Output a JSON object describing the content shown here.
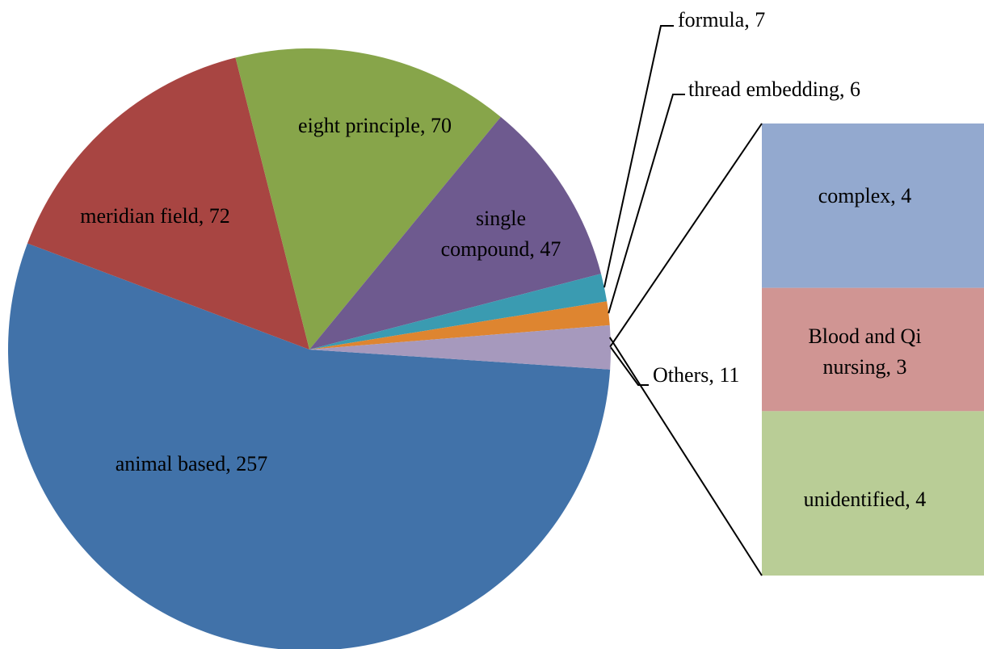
{
  "chart_data": [
    {
      "type": "pie",
      "values": [
        257,
        72,
        70,
        47,
        7,
        6,
        11
      ],
      "value_labels": [
        "animal based, 257",
        "meridian field, 72",
        "eight principle, 70",
        "single compound, 47",
        "formula, 7",
        "thread embedding, 6",
        "Others, 11"
      ],
      "colors": [
        "#4172a9",
        "#a84542",
        "#87a54a",
        "#6e5a8f",
        "#3a9bb1",
        "#de8530",
        "#a699bd"
      ]
    },
    {
      "type": "bar",
      "values": [
        4,
        3,
        4
      ],
      "value_labels": [
        "complex, 4",
        "Blood and Qi nursing, 3",
        "unidentified, 4"
      ],
      "colors": [
        "#93a9cf",
        "#d09593",
        "#b9cd96"
      ]
    }
  ]
}
